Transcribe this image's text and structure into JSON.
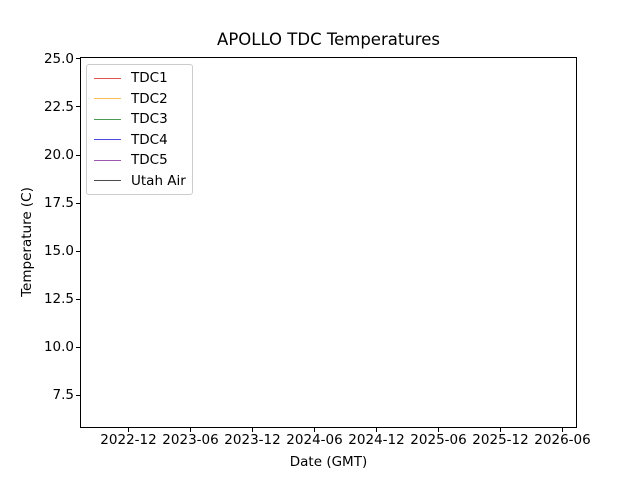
{
  "figure": {
    "background": "#ffffff",
    "spine_color": "#000000",
    "legend_border_color": "#cccccc"
  },
  "chart_data": {
    "type": "line",
    "title": "APOLLO TDC Temperatures",
    "xlabel": "Date (GMT)",
    "ylabel": "Temperature (C)",
    "xticks": [
      "2022-12",
      "2023-06",
      "2023-12",
      "2024-06",
      "2024-12",
      "2025-06",
      "2025-12",
      "2026-06"
    ],
    "yticks": [
      "25.0",
      "22.5",
      "20.0",
      "17.5",
      "15.0",
      "12.5",
      "10.0",
      "7.5"
    ],
    "ytick_values": [
      25.0,
      22.5,
      20.0,
      17.5,
      15.0,
      12.5,
      10.0,
      7.5
    ],
    "ylim": [
      5.8,
      25.1
    ],
    "grid": false,
    "legend_position": "upper-left",
    "series": [
      {
        "name": "TDC1",
        "color": "#e4524d",
        "values": []
      },
      {
        "name": "TDC2",
        "color": "#fcbc54",
        "values": []
      },
      {
        "name": "TDC3",
        "color": "#4c9c55",
        "values": []
      },
      {
        "name": "TDC4",
        "color": "#4b49df",
        "values": []
      },
      {
        "name": "TDC5",
        "color": "#9b58ac",
        "values": []
      },
      {
        "name": "Utah Air",
        "color": "#4b4b4b",
        "values": []
      }
    ]
  }
}
